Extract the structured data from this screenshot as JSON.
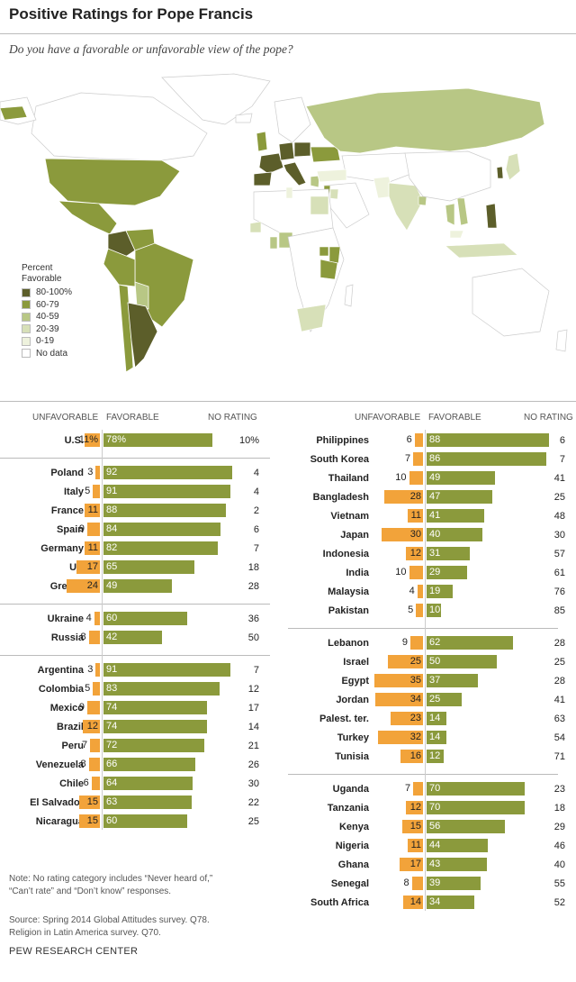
{
  "title": "Positive Ratings for Pope Francis",
  "subtitle": "Do you have a favorable or unfavorable view of the pope?",
  "legend": {
    "title_line1": "Percent",
    "title_line2": "Favorable",
    "items": [
      {
        "label": "80-100%",
        "color": "#5c5e2a"
      },
      {
        "label": "60-79",
        "color": "#8b9a3c"
      },
      {
        "label": "40-59",
        "color": "#b8c785"
      },
      {
        "label": "20-39",
        "color": "#d7e0b8"
      },
      {
        "label": "0-19",
        "color": "#eef2dd"
      },
      {
        "label": "No data",
        "color": "#ffffff"
      }
    ]
  },
  "columns": {
    "unfavorable": "UNFAVORABLE",
    "favorable": "FAVORABLE",
    "no_rating": "NO RATING"
  },
  "colors": {
    "unfavorable": "#f2a33a",
    "favorable": "#8b9a3c"
  },
  "chart_data": {
    "type": "bar",
    "series": [
      {
        "name": "UNFAVORABLE"
      },
      {
        "name": "FAVORABLE"
      },
      {
        "name": "NO RATING"
      }
    ],
    "groups": [
      {
        "column": "left",
        "rows": [
          {
            "country": "U.S.",
            "unfavorable": 11,
            "favorable": 78,
            "no_rating": 10,
            "unfav_label": "11%",
            "fav_label": "78%",
            "nr_label": "10%"
          }
        ]
      },
      {
        "column": "left",
        "rows": [
          {
            "country": "Poland",
            "unfavorable": 3,
            "favorable": 92,
            "no_rating": 4
          },
          {
            "country": "Italy",
            "unfavorable": 5,
            "favorable": 91,
            "no_rating": 4
          },
          {
            "country": "France",
            "unfavorable": 11,
            "favorable": 88,
            "no_rating": 2
          },
          {
            "country": "Spain",
            "unfavorable": 9,
            "favorable": 84,
            "no_rating": 6
          },
          {
            "country": "Germany",
            "unfavorable": 11,
            "favorable": 82,
            "no_rating": 7
          },
          {
            "country": "UK",
            "unfavorable": 17,
            "favorable": 65,
            "no_rating": 18
          },
          {
            "country": "Greece",
            "unfavorable": 24,
            "favorable": 49,
            "no_rating": 28
          }
        ]
      },
      {
        "column": "left",
        "rows": [
          {
            "country": "Ukraine",
            "unfavorable": 4,
            "favorable": 60,
            "no_rating": 36
          },
          {
            "country": "Russia",
            "unfavorable": 8,
            "favorable": 42,
            "no_rating": 50
          }
        ]
      },
      {
        "column": "left",
        "rows": [
          {
            "country": "Argentina",
            "unfavorable": 3,
            "favorable": 91,
            "no_rating": 7
          },
          {
            "country": "Colombia",
            "unfavorable": 5,
            "favorable": 83,
            "no_rating": 12
          },
          {
            "country": "Mexico",
            "unfavorable": 9,
            "favorable": 74,
            "no_rating": 17
          },
          {
            "country": "Brazil",
            "unfavorable": 12,
            "favorable": 74,
            "no_rating": 14
          },
          {
            "country": "Peru",
            "unfavorable": 7,
            "favorable": 72,
            "no_rating": 21
          },
          {
            "country": "Venezuela",
            "unfavorable": 8,
            "favorable": 66,
            "no_rating": 26
          },
          {
            "country": "Chile",
            "unfavorable": 6,
            "favorable": 64,
            "no_rating": 30
          },
          {
            "country": "El Salvador",
            "unfavorable": 15,
            "favorable": 63,
            "no_rating": 22
          },
          {
            "country": "Nicaragua",
            "unfavorable": 15,
            "favorable": 60,
            "no_rating": 25
          }
        ]
      },
      {
        "column": "right",
        "rows": [
          {
            "country": "Philippines",
            "unfavorable": 6,
            "favorable": 88,
            "no_rating": 6
          },
          {
            "country": "South Korea",
            "unfavorable": 7,
            "favorable": 86,
            "no_rating": 7
          },
          {
            "country": "Thailand",
            "unfavorable": 10,
            "favorable": 49,
            "no_rating": 41
          },
          {
            "country": "Bangladesh",
            "unfavorable": 28,
            "favorable": 47,
            "no_rating": 25
          },
          {
            "country": "Vietnam",
            "unfavorable": 11,
            "favorable": 41,
            "no_rating": 48
          },
          {
            "country": "Japan",
            "unfavorable": 30,
            "favorable": 40,
            "no_rating": 30
          },
          {
            "country": "Indonesia",
            "unfavorable": 12,
            "favorable": 31,
            "no_rating": 57
          },
          {
            "country": "India",
            "unfavorable": 10,
            "favorable": 29,
            "no_rating": 61
          },
          {
            "country": "Malaysia",
            "unfavorable": 4,
            "favorable": 19,
            "no_rating": 76
          },
          {
            "country": "Pakistan",
            "unfavorable": 5,
            "favorable": 10,
            "no_rating": 85
          }
        ]
      },
      {
        "column": "right",
        "rows": [
          {
            "country": "Lebanon",
            "unfavorable": 9,
            "favorable": 62,
            "no_rating": 28
          },
          {
            "country": "Israel",
            "unfavorable": 25,
            "favorable": 50,
            "no_rating": 25
          },
          {
            "country": "Egypt",
            "unfavorable": 35,
            "favorable": 37,
            "no_rating": 28
          },
          {
            "country": "Jordan",
            "unfavorable": 34,
            "favorable": 25,
            "no_rating": 41
          },
          {
            "country": "Palest. ter.",
            "unfavorable": 23,
            "favorable": 14,
            "no_rating": 63
          },
          {
            "country": "Turkey",
            "unfavorable": 32,
            "favorable": 14,
            "no_rating": 54
          },
          {
            "country": "Tunisia",
            "unfavorable": 16,
            "favorable": 12,
            "no_rating": 71
          }
        ]
      },
      {
        "column": "right",
        "rows": [
          {
            "country": "Uganda",
            "unfavorable": 7,
            "favorable": 70,
            "no_rating": 23
          },
          {
            "country": "Tanzania",
            "unfavorable": 12,
            "favorable": 70,
            "no_rating": 18
          },
          {
            "country": "Kenya",
            "unfavorable": 15,
            "favorable": 56,
            "no_rating": 29
          },
          {
            "country": "Nigeria",
            "unfavorable": 11,
            "favorable": 44,
            "no_rating": 46
          },
          {
            "country": "Ghana",
            "unfavorable": 17,
            "favorable": 43,
            "no_rating": 40
          },
          {
            "country": "Senegal",
            "unfavorable": 8,
            "favorable": 39,
            "no_rating": 55
          },
          {
            "country": "South Africa",
            "unfavorable": 14,
            "favorable": 34,
            "no_rating": 52
          }
        ]
      }
    ]
  },
  "notes": {
    "note_line1": "Note: No rating category includes “Never heard of,”",
    "note_line2": "“Can’t rate” and “Don’t know” responses.",
    "source_line1": "Source: Spring 2014 Global Attitudes survey. Q78.",
    "source_line2": "Religion in Latin America survey. Q70."
  },
  "footer": "PEW RESEARCH CENTER"
}
